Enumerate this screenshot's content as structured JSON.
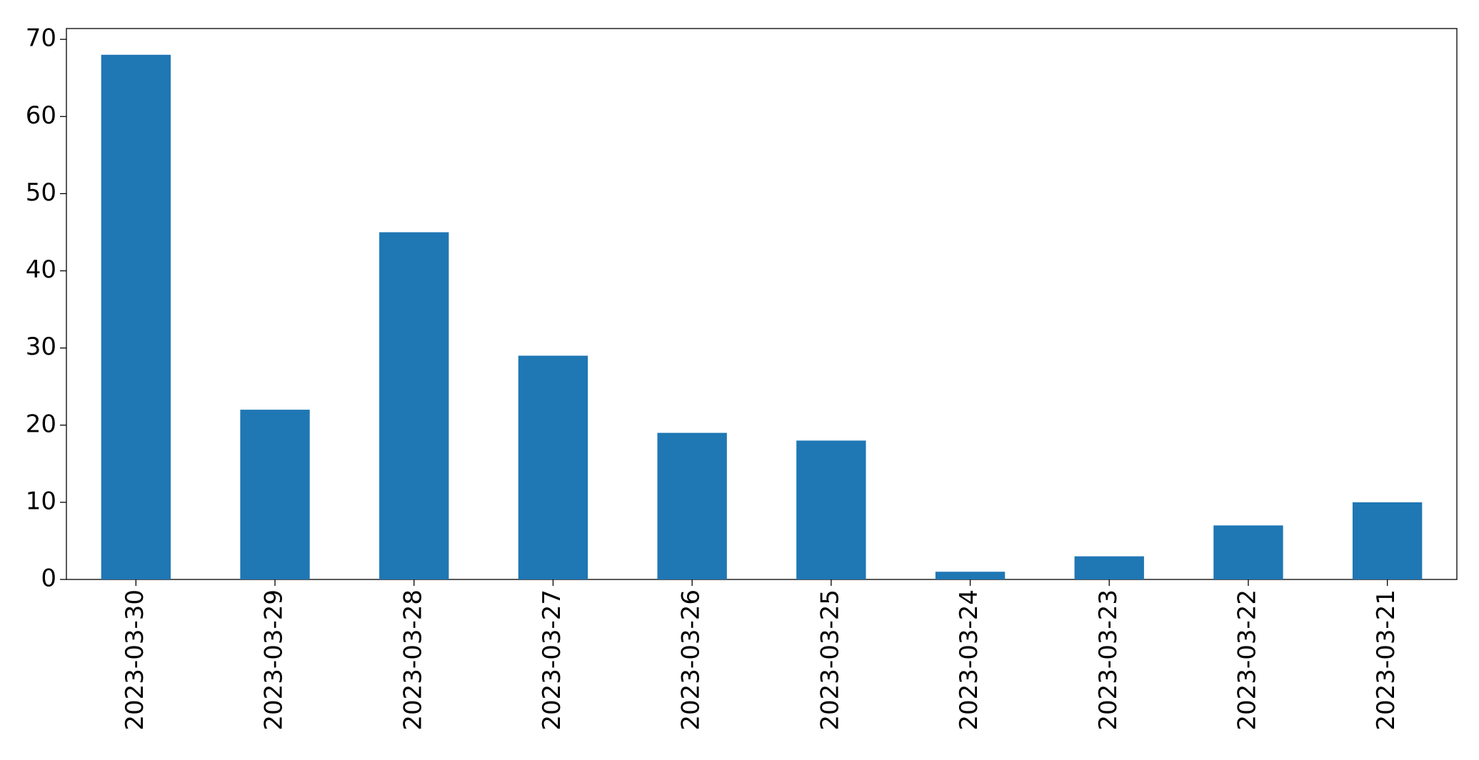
{
  "chart_data": {
    "type": "bar",
    "categories": [
      "2023-03-30",
      "2023-03-29",
      "2023-03-28",
      "2023-03-27",
      "2023-03-26",
      "2023-03-25",
      "2023-03-24",
      "2023-03-23",
      "2023-03-22",
      "2023-03-21"
    ],
    "values": [
      68,
      22,
      45,
      29,
      19,
      18,
      1,
      3,
      7,
      10
    ],
    "color": "#1f77b4",
    "ylim": [
      0,
      71.4
    ],
    "yticks": [
      0,
      10,
      20,
      30,
      40,
      50,
      60,
      70
    ],
    "grid": false
  }
}
